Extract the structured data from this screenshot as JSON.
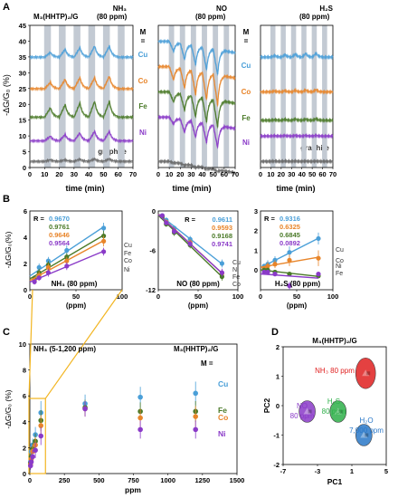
{
  "colors": {
    "Cu": "#4a9fd8",
    "Co": "#e8852a",
    "Fe": "#4a7a28",
    "Ni": "#8a3ac8",
    "graphite": "#666666",
    "grid": "#c3cad3",
    "yellow": "#f2b521"
  },
  "panelA": {
    "letter": "A",
    "ylabel": "-ΔG/G₀ (%)",
    "xlabel": "time (min)",
    "mlabel": "M",
    "meq": "=",
    "sub_labels": {
      "left": "M₃(HHTP)₂/G",
      "left_gas": "NH₃",
      "left_conc": "(80 ppm)",
      "mid_gas": "NO",
      "mid_conc": "(80 ppm)",
      "right_gas": "H₂S",
      "right_conc": "(80 ppm)"
    },
    "series_labels": {
      "Cu": "Cu",
      "Co": "Co",
      "Fe": "Fe",
      "Ni": "Ni",
      "graphite": "graphite"
    },
    "yticks": [
      "0",
      "5",
      "10",
      "15",
      "20",
      "25",
      "30",
      "35",
      "40",
      "45"
    ],
    "xticks": [
      "0",
      "10",
      "20",
      "30",
      "40",
      "50",
      "60",
      "70"
    ]
  },
  "chart_data": [
    {
      "type": "line",
      "panel": "A-NH3",
      "title": "M₃(HHTP)₂/G NH₃ (80 ppm)",
      "xlabel": "time (min)",
      "ylabel": "-ΔG/G₀ (%)",
      "xlim": [
        0,
        70
      ],
      "ylim": [
        0,
        45
      ],
      "series": [
        {
          "name": "Cu",
          "baseline": 35,
          "response": [
            1.5,
            2.5,
            3,
            3.5,
            3.5
          ]
        },
        {
          "name": "Co",
          "baseline": 25,
          "response": [
            2,
            3,
            3.5,
            3.5,
            4
          ]
        },
        {
          "name": "Fe",
          "baseline": 16,
          "response": [
            3,
            4,
            4.5,
            5,
            5
          ]
        },
        {
          "name": "Ni",
          "baseline": 8.5,
          "response": [
            1.5,
            2,
            2.5,
            3,
            3
          ]
        },
        {
          "name": "graphite",
          "baseline": 2,
          "response": [
            0.5,
            0.5,
            0.7,
            0.8,
            0.8
          ]
        }
      ]
    },
    {
      "type": "line",
      "panel": "A-NO",
      "title": "NO (80 ppm)",
      "xlabel": "time (min)",
      "xlim": [
        0,
        70
      ],
      "ylim": [
        0,
        45
      ],
      "series": [
        {
          "name": "Cu",
          "baseline": 40,
          "response": [
            -3,
            -5,
            -6,
            -7,
            -8
          ]
        },
        {
          "name": "Co",
          "baseline": 32,
          "response": [
            -4,
            -6,
            -7.5,
            -8.5,
            -9.5
          ]
        },
        {
          "name": "Fe",
          "baseline": 24,
          "response": [
            -3,
            -5,
            -6.5,
            -7.5,
            -8.5
          ]
        },
        {
          "name": "Ni",
          "baseline": 16,
          "response": [
            -2,
            -4,
            -5,
            -6,
            -7
          ]
        },
        {
          "name": "graphite",
          "baseline": 2,
          "response": [
            -0.3,
            -0.4,
            -0.5,
            -0.5,
            -0.6
          ]
        }
      ]
    },
    {
      "type": "line",
      "panel": "A-H2S",
      "title": "H₂S (80 ppm)",
      "xlabel": "time (min)",
      "xlim": [
        0,
        70
      ],
      "ylim": [
        0,
        45
      ],
      "series": [
        {
          "name": "Cu",
          "baseline": 35,
          "response": [
            0.5,
            0.8,
            1,
            1.2,
            1.3
          ]
        },
        {
          "name": "Co",
          "baseline": 24,
          "response": [
            0.3,
            0.4,
            0.5,
            0.6,
            0.7
          ]
        },
        {
          "name": "Fe",
          "baseline": 15,
          "response": [
            0.2,
            0.3,
            0.4,
            0.4,
            0.5
          ]
        },
        {
          "name": "Ni",
          "baseline": 10,
          "response": [
            0.1,
            0.2,
            0.2,
            0.2,
            0.2
          ]
        },
        {
          "name": "graphite",
          "baseline": 2,
          "response": [
            0.1,
            0.1,
            0.1,
            0.1,
            0.1
          ]
        }
      ]
    },
    {
      "type": "scatter",
      "panel": "B-NH3",
      "title": "NH₃ (80 ppm)",
      "xlabel": "(ppm)",
      "ylabel": "-ΔG/G₀(%)",
      "xlim": [
        0,
        100
      ],
      "ylim": [
        0,
        6
      ],
      "xticks": [
        "0",
        "50",
        "100"
      ],
      "yticks": [
        "0",
        "2",
        "4",
        "6"
      ],
      "r_prefix": "R =",
      "series": [
        {
          "name": "Cu",
          "r": "0.9670",
          "x": [
            5,
            10,
            20,
            40,
            80
          ],
          "y": [
            0.9,
            1.7,
            2.2,
            3.0,
            4.7
          ],
          "err": [
            0.2,
            0.3,
            0.3,
            0.4,
            0.4
          ]
        },
        {
          "name": "Fe",
          "r": "0.9761",
          "x": [
            5,
            10,
            20,
            40,
            80
          ],
          "y": [
            0.8,
            1.3,
            1.9,
            2.5,
            4.1
          ],
          "err": [
            0.2,
            0.3,
            0.3,
            0.3,
            0.4
          ]
        },
        {
          "name": "Co",
          "r": "0.9646",
          "x": [
            5,
            10,
            20,
            40,
            80
          ],
          "y": [
            0.7,
            1.1,
            1.7,
            2.2,
            3.7
          ],
          "err": [
            0.2,
            0.3,
            0.3,
            0.3,
            0.4
          ]
        },
        {
          "name": "Ni",
          "r": "0.9564",
          "x": [
            5,
            10,
            20,
            40,
            80
          ],
          "y": [
            0.6,
            0.9,
            1.3,
            1.8,
            2.9
          ],
          "err": [
            0.2,
            0.2,
            0.3,
            0.3,
            0.3
          ]
        }
      ]
    },
    {
      "type": "scatter",
      "panel": "B-NO",
      "title": "NO (80 ppm)",
      "xlabel": "(ppm)",
      "xlim": [
        0,
        100
      ],
      "ylim": [
        -12,
        0
      ],
      "xticks": [
        "0",
        "50",
        "100"
      ],
      "yticks": [
        "0",
        "-6",
        "-12"
      ],
      "series": [
        {
          "name": "Cu",
          "r": "0.9611",
          "x": [
            5,
            10,
            20,
            40,
            80
          ],
          "y": [
            -0.7,
            -1.4,
            -2.6,
            -4.3,
            -8.0
          ],
          "err": [
            0.3,
            0.4,
            0.4,
            0.5,
            0.6
          ]
        },
        {
          "name": "Co",
          "r": "0.9593",
          "x": [
            5,
            10,
            20,
            40,
            80
          ],
          "y": [
            -0.8,
            -1.7,
            -3.0,
            -4.8,
            -9.5
          ],
          "err": [
            0.3,
            0.4,
            0.5,
            0.5,
            0.6
          ]
        },
        {
          "name": "Fe",
          "r": "0.9168",
          "x": [
            5,
            10,
            20,
            40,
            80
          ],
          "y": [
            -0.9,
            -2.0,
            -3.3,
            -5.2,
            -10.0
          ],
          "err": [
            0.3,
            0.4,
            0.5,
            0.5,
            0.6
          ]
        },
        {
          "name": "Ni",
          "r": "0.9741",
          "x": [
            5,
            10,
            20,
            40,
            80
          ],
          "y": [
            -0.7,
            -1.8,
            -3.1,
            -5.0,
            -9.4
          ],
          "err": [
            0.3,
            0.4,
            0.5,
            0.5,
            0.6
          ]
        }
      ],
      "labels_right": [
        "Cu",
        "Ni",
        "Fe",
        "Co"
      ]
    },
    {
      "type": "scatter",
      "panel": "B-H2S",
      "title": "H₂S (80 ppm)",
      "xlabel": "(ppm)",
      "xlim": [
        0,
        100
      ],
      "ylim": [
        -1,
        3
      ],
      "xticks": [
        "0",
        "50",
        "100"
      ],
      "yticks": [
        "3",
        "2",
        "1",
        "0"
      ],
      "r_prefix": "R =",
      "series": [
        {
          "name": "Cu",
          "r": "0.9316",
          "x": [
            5,
            10,
            20,
            40,
            80
          ],
          "y": [
            0.2,
            0.3,
            0.5,
            0.9,
            1.6
          ],
          "err": [
            0.1,
            0.2,
            0.2,
            0.3,
            0.3
          ]
        },
        {
          "name": "Co",
          "r": "0.6325",
          "x": [
            5,
            10,
            20,
            40,
            80
          ],
          "y": [
            0.1,
            0.2,
            0.3,
            0.5,
            0.6
          ],
          "err": [
            0.1,
            0.2,
            0.2,
            0.3,
            0.4
          ]
        },
        {
          "name": "Fe",
          "r": "0.6845",
          "x": [
            5,
            10,
            20,
            40,
            80
          ],
          "y": [
            0.0,
            0.0,
            -0.1,
            -0.2,
            -0.3
          ],
          "err": [
            0.1,
            0.1,
            0.1,
            0.1,
            0.1
          ]
        },
        {
          "name": "Ni",
          "r": "0.0892",
          "x": [
            5,
            10,
            20,
            40,
            80
          ],
          "y": [
            -0.1,
            -0.1,
            -0.2,
            -0.8,
            -0.2
          ],
          "err": [
            0.1,
            0.1,
            0.1,
            0.2,
            0.1
          ]
        }
      ],
      "labels_right": [
        "Cu",
        "Co",
        "Ni",
        "Fe"
      ]
    },
    {
      "type": "scatter",
      "panel": "C",
      "title": "NH₃ (5-1,200 ppm)",
      "subtitle": "M₃(HHTP)₂/G",
      "xlabel": "ppm",
      "ylabel": "-ΔG/G₀ (%)",
      "xlim": [
        0,
        1500
      ],
      "ylim": [
        0,
        10
      ],
      "xticks": [
        "0",
        "250",
        "500",
        "750",
        "1000",
        "1250",
        "1500"
      ],
      "yticks": [
        "0",
        "2",
        "4",
        "6",
        "8",
        "10"
      ],
      "mlabel": "M =",
      "series": [
        {
          "name": "Cu",
          "x": [
            5,
            10,
            20,
            40,
            80,
            400,
            800,
            1200
          ],
          "y": [
            0.9,
            1.7,
            2.2,
            3.0,
            4.7,
            5.4,
            5.9,
            6.2
          ],
          "err": [
            0.3,
            0.4,
            0.5,
            0.6,
            0.9,
            0.7,
            0.8,
            0.9
          ]
        },
        {
          "name": "Fe",
          "x": [
            5,
            10,
            20,
            40,
            80,
            400,
            800,
            1200
          ],
          "y": [
            0.8,
            1.3,
            1.9,
            2.5,
            4.1,
            5.1,
            4.8,
            4.8
          ],
          "err": [
            0.3,
            0.4,
            0.5,
            0.6,
            0.8,
            0.6,
            0.7,
            0.8
          ]
        },
        {
          "name": "Co",
          "x": [
            5,
            10,
            20,
            40,
            80,
            400,
            800,
            1200
          ],
          "y": [
            0.7,
            1.1,
            1.7,
            2.2,
            3.7,
            5.0,
            4.3,
            4.4
          ],
          "err": [
            0.3,
            0.4,
            0.5,
            0.6,
            0.8,
            0.6,
            0.7,
            0.8
          ]
        },
        {
          "name": "Ni",
          "x": [
            5,
            10,
            20,
            40,
            80,
            400,
            800,
            1200
          ],
          "y": [
            0.6,
            0.9,
            1.3,
            1.8,
            2.9,
            5.0,
            3.4,
            3.4
          ],
          "err": [
            0.3,
            0.4,
            0.5,
            0.6,
            0.7,
            0.6,
            0.7,
            0.7
          ]
        }
      ]
    },
    {
      "type": "scatter",
      "panel": "D",
      "title": "M₃(HHTP)₂/G",
      "xlabel": "PC1",
      "ylabel": "PC2",
      "xlim": [
        -7,
        5
      ],
      "ylim": [
        -2,
        2
      ],
      "xticks": [
        "-7",
        "-3",
        "1",
        "5"
      ],
      "yticks": [
        "2",
        "1",
        "0",
        "-1",
        "-2"
      ],
      "clusters": [
        {
          "label": "NH₃ 80 ppm",
          "label1": "NH₃ 80 ppm",
          "color": "#e02020",
          "cx": 2.6,
          "cy": 1.1
        },
        {
          "label1": "NO",
          "label2": "80 ppm",
          "color": "#8a3ac8",
          "cx": -4.2,
          "cy": -0.2
        },
        {
          "label1": "H₂S",
          "label2": "80 ppm",
          "color": "#2fb04a",
          "cx": -0.6,
          "cy": -0.2
        },
        {
          "label1": "H₂O",
          "label2": "7,000 ppm",
          "color": "#2a78c8",
          "cx": 2.4,
          "cy": -1.0
        }
      ]
    }
  ],
  "panel_letters": {
    "B": "B",
    "C": "C",
    "D": "D"
  }
}
